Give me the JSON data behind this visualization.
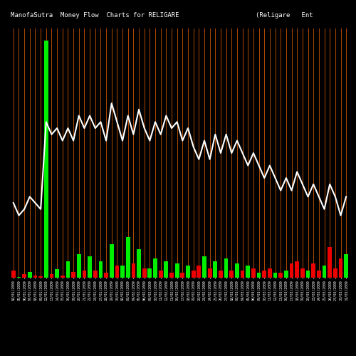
{
  "title": "ManofaSutra  Money Flow  Charts for RELIGARE                    (Religare   Ent",
  "background_color": "#000000",
  "line_color": "#ffffff",
  "categories": [
    "02/01/2009",
    "05/01/2009",
    "06/01/2009",
    "07/01/2009",
    "08/01/2009",
    "09/01/2009",
    "12/01/2009",
    "13/01/2009",
    "14/01/2009",
    "15/01/2009",
    "16/01/2009",
    "19/01/2009",
    "20/01/2009",
    "21/01/2009",
    "22/01/2009",
    "23/01/2009",
    "27/01/2009",
    "28/01/2009",
    "29/01/2009",
    "30/01/2009",
    "02/02/2009",
    "03/02/2009",
    "04/02/2009",
    "05/02/2009",
    "06/02/2009",
    "09/02/2009",
    "10/02/2009",
    "11/02/2009",
    "12/02/2009",
    "13/02/2009",
    "16/02/2009",
    "17/02/2009",
    "18/02/2009",
    "19/02/2009",
    "20/02/2009",
    "23/02/2009",
    "24/02/2009",
    "25/02/2009",
    "26/02/2009",
    "27/02/2009",
    "02/03/2009",
    "03/03/2009",
    "04/03/2009",
    "05/03/2009",
    "06/03/2009",
    "09/03/2009",
    "10/03/2009",
    "11/03/2009",
    "12/03/2009",
    "13/03/2009",
    "16/03/2009",
    "17/03/2009",
    "18/03/2009",
    "19/03/2009",
    "20/03/2009",
    "23/03/2009",
    "24/03/2009",
    "25/03/2009",
    "26/03/2009",
    "27/03/2009",
    "30/03/2009",
    "31/03/2009"
  ],
  "bar_heights": [
    3,
    0.4,
    1.5,
    2.5,
    1.0,
    0.5,
    100,
    1.5,
    3.5,
    1.0,
    7,
    2.5,
    10,
    3.0,
    9,
    3.0,
    7,
    2.0,
    14,
    5.0,
    5,
    17,
    6,
    12,
    4,
    4,
    8,
    3,
    7,
    2,
    6,
    2,
    5,
    3,
    5,
    9,
    4,
    7,
    3,
    8,
    3,
    6,
    3,
    5,
    4,
    2,
    3,
    4,
    2,
    2,
    3,
    6,
    7,
    4,
    3,
    6,
    3,
    5,
    13,
    4,
    8,
    10
  ],
  "bar_colors": [
    "red",
    "green",
    "red",
    "green",
    "red",
    "red",
    "green",
    "red",
    "green",
    "red",
    "green",
    "red",
    "green",
    "red",
    "green",
    "red",
    "green",
    "red",
    "green",
    "red",
    "green",
    "green",
    "red",
    "green",
    "red",
    "green",
    "green",
    "red",
    "green",
    "red",
    "green",
    "red",
    "green",
    "red",
    "red",
    "green",
    "red",
    "green",
    "red",
    "green",
    "red",
    "green",
    "red",
    "green",
    "red",
    "green",
    "red",
    "red",
    "green",
    "red",
    "green",
    "red",
    "red",
    "red",
    "green",
    "red",
    "red",
    "green",
    "red",
    "red",
    "red",
    "green"
  ],
  "line_values": [
    62,
    60,
    61,
    63,
    62,
    61,
    75,
    73,
    74,
    72,
    74,
    72,
    76,
    74,
    76,
    74,
    75,
    72,
    78,
    75,
    72,
    76,
    73,
    77,
    74,
    72,
    75,
    73,
    76,
    74,
    75,
    72,
    74,
    71,
    69,
    72,
    69,
    73,
    70,
    73,
    70,
    72,
    70,
    68,
    70,
    68,
    66,
    68,
    66,
    64,
    66,
    64,
    67,
    65,
    63,
    65,
    63,
    61,
    65,
    63,
    60,
    63
  ],
  "ylim_bar": [
    0,
    105
  ],
  "ylim_line": [
    50,
    90
  ],
  "orange_line_color": "#cc5500",
  "title_fontsize": 6.5,
  "tick_fontsize": 3.5
}
